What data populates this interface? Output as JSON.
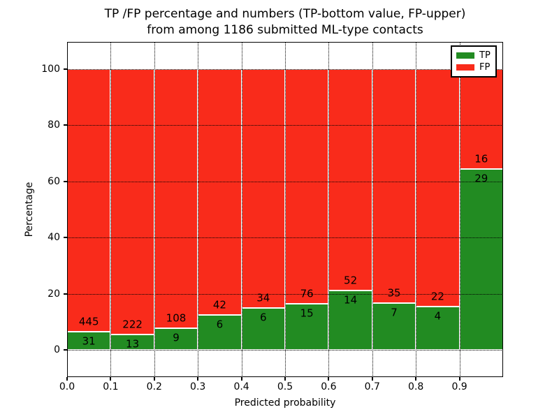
{
  "chart_data": {
    "type": "bar",
    "stacked": true,
    "title_line1": "TP /FP percentage and numbers (TP-bottom value, FP-upper)",
    "title_line2": "from among 1186 submitted ML-type contacts",
    "xlabel": "Predicted probability",
    "ylabel": "Percentage",
    "xlim": [
      0.0,
      1.0
    ],
    "ylim": [
      -9.7,
      109.7
    ],
    "grid": true,
    "bar_width": 0.1,
    "bins": [
      0.0,
      0.1,
      0.2,
      0.3,
      0.4,
      0.5,
      0.6,
      0.7,
      0.8,
      0.9
    ],
    "xticks": [
      0.0,
      0.1,
      0.2,
      0.3,
      0.4,
      0.5,
      0.6,
      0.7,
      0.8,
      0.9
    ],
    "xtick_labels": [
      "0.0",
      "0.1",
      "0.2",
      "0.3",
      "0.4",
      "0.5",
      "0.6",
      "0.7",
      "0.8",
      "0.9"
    ],
    "yticks": [
      0,
      20,
      40,
      60,
      80,
      100
    ],
    "ytick_labels": [
      "0",
      "20",
      "40",
      "60",
      "80",
      "100"
    ],
    "series": [
      {
        "name": "TP",
        "color": "#228b22",
        "counts": [
          31,
          13,
          9,
          6,
          6,
          15,
          14,
          7,
          4,
          29
        ]
      },
      {
        "name": "FP",
        "color": "#f92b1b",
        "counts": [
          445,
          222,
          108,
          42,
          34,
          76,
          52,
          35,
          22,
          16
        ]
      }
    ],
    "tp_percent": [
      6.5,
      5.5,
      7.7,
      12.5,
      15.0,
      16.5,
      21.2,
      16.7,
      15.4,
      64.4
    ],
    "bars_stack_to": 100,
    "legend_position": "upper right",
    "legend": [
      {
        "label": "TP",
        "color": "#228b22"
      },
      {
        "label": "FP",
        "color": "#f92b1b"
      }
    ]
  }
}
